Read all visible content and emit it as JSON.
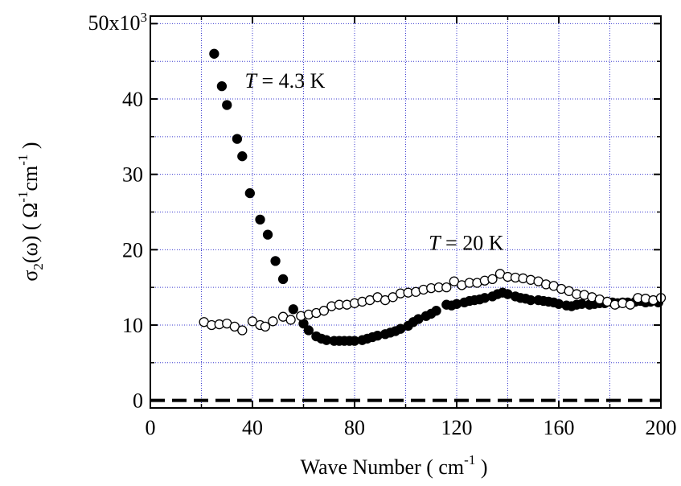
{
  "chart_data": {
    "type": "scatter",
    "xlabel": "Wave Number ( cm",
    "xlabel_sup": "-1",
    "xlabel_end": " )",
    "ylabel": "σ",
    "ylabel_sub": "2",
    "ylabel_mid": "(ω) ( Ω",
    "ylabel_sup1": "-1",
    "ylabel_mid2": "cm",
    "ylabel_sup2": "-1",
    "ylabel_end": " )",
    "y_multiplier_base": "x10",
    "y_multiplier_exp": "3",
    "xlim": [
      0,
      200
    ],
    "ylim": [
      -1,
      51
    ],
    "x_ticks": [
      {
        "value": 0,
        "label": "0"
      },
      {
        "value": 40,
        "label": "40"
      },
      {
        "value": 80,
        "label": "80"
      },
      {
        "value": 120,
        "label": "120"
      },
      {
        "value": 160,
        "label": "160"
      },
      {
        "value": 200,
        "label": "200"
      }
    ],
    "y_ticks": [
      {
        "value": 0,
        "label": "0"
      },
      {
        "value": 10,
        "label": "10"
      },
      {
        "value": 20,
        "label": "20"
      },
      {
        "value": 30,
        "label": "30"
      },
      {
        "value": 40,
        "label": "40"
      },
      {
        "value": 50,
        "label": "50"
      }
    ],
    "grid": true,
    "reference_line": {
      "y": 0,
      "style": "dashed"
    },
    "annotations": [
      {
        "italic": "T",
        "text": " = 4.3 K",
        "x": 37,
        "y": 41.5
      },
      {
        "italic": "T",
        "text": " = 20 K",
        "x": 109,
        "y": 20.0
      }
    ],
    "series": [
      {
        "marker": "filled",
        "points": [
          [
            25,
            46.0
          ],
          [
            28,
            41.7
          ],
          [
            30,
            39.2
          ],
          [
            34,
            34.7
          ],
          [
            36,
            32.4
          ],
          [
            39,
            27.5
          ],
          [
            43,
            24.0
          ],
          [
            46,
            22.0
          ],
          [
            49,
            18.5
          ],
          [
            52,
            16.1
          ],
          [
            56,
            12.1
          ],
          [
            60,
            10.2
          ],
          [
            62,
            9.3
          ],
          [
            65,
            8.5
          ],
          [
            67,
            8.2
          ],
          [
            69,
            8.0
          ],
          [
            72,
            7.9
          ],
          [
            74,
            7.9
          ],
          [
            76,
            7.9
          ],
          [
            78,
            7.9
          ],
          [
            80,
            7.9
          ],
          [
            83,
            8.0
          ],
          [
            85,
            8.2
          ],
          [
            87,
            8.4
          ],
          [
            89,
            8.6
          ],
          [
            92,
            8.8
          ],
          [
            94,
            9.0
          ],
          [
            96,
            9.2
          ],
          [
            98,
            9.5
          ],
          [
            101,
            9.9
          ],
          [
            103,
            10.4
          ],
          [
            105,
            10.8
          ],
          [
            108,
            11.2
          ],
          [
            110,
            11.5
          ],
          [
            112,
            11.9
          ],
          [
            116,
            12.7
          ],
          [
            118,
            12.6
          ],
          [
            120,
            12.8
          ],
          [
            123,
            13.0
          ],
          [
            125,
            13.2
          ],
          [
            127,
            13.3
          ],
          [
            129,
            13.4
          ],
          [
            131,
            13.6
          ],
          [
            134,
            13.8
          ],
          [
            136,
            14.1
          ],
          [
            138,
            14.3
          ],
          [
            140,
            14.1
          ],
          [
            143,
            13.8
          ],
          [
            145,
            13.6
          ],
          [
            147,
            13.5
          ],
          [
            149,
            13.3
          ],
          [
            152,
            13.3
          ],
          [
            154,
            13.2
          ],
          [
            156,
            13.1
          ],
          [
            158,
            13.0
          ],
          [
            160,
            12.8
          ],
          [
            163,
            12.6
          ],
          [
            165,
            12.5
          ],
          [
            167,
            12.7
          ],
          [
            169,
            12.8
          ],
          [
            172,
            12.7
          ],
          [
            174,
            12.8
          ],
          [
            176,
            12.9
          ],
          [
            178,
            12.9
          ],
          [
            181,
            13.0
          ],
          [
            183,
            12.9
          ],
          [
            185,
            13.0
          ],
          [
            187,
            13.0
          ],
          [
            190,
            13.1
          ],
          [
            192,
            13.2
          ],
          [
            194,
            13.0
          ],
          [
            196,
            13.1
          ],
          [
            199,
            13.0
          ]
        ]
      },
      {
        "marker": "open",
        "points": [
          [
            21,
            10.4
          ],
          [
            24,
            10.0
          ],
          [
            27,
            10.1
          ],
          [
            30,
            10.2
          ],
          [
            33,
            9.8
          ],
          [
            36,
            9.3
          ],
          [
            40,
            10.5
          ],
          [
            43,
            10.0
          ],
          [
            45,
            9.8
          ],
          [
            48,
            10.5
          ],
          [
            52,
            11.1
          ],
          [
            55,
            10.7
          ],
          [
            59,
            11.2
          ],
          [
            62,
            11.4
          ],
          [
            65,
            11.6
          ],
          [
            68,
            11.9
          ],
          [
            71,
            12.5
          ],
          [
            74,
            12.7
          ],
          [
            77,
            12.7
          ],
          [
            80,
            12.9
          ],
          [
            83,
            13.1
          ],
          [
            86,
            13.3
          ],
          [
            89,
            13.7
          ],
          [
            92,
            13.3
          ],
          [
            95,
            13.7
          ],
          [
            98,
            14.2
          ],
          [
            101,
            14.3
          ],
          [
            104,
            14.4
          ],
          [
            107,
            14.7
          ],
          [
            110,
            14.9
          ],
          [
            113,
            15.0
          ],
          [
            116,
            15.0
          ],
          [
            119,
            15.8
          ],
          [
            122,
            15.3
          ],
          [
            125,
            15.6
          ],
          [
            128,
            15.6
          ],
          [
            131,
            15.9
          ],
          [
            134,
            16.1
          ],
          [
            137,
            16.8
          ],
          [
            140,
            16.4
          ],
          [
            143,
            16.3
          ],
          [
            146,
            16.2
          ],
          [
            149,
            16.0
          ],
          [
            152,
            15.8
          ],
          [
            155,
            15.4
          ],
          [
            158,
            15.2
          ],
          [
            161,
            14.8
          ],
          [
            164,
            14.5
          ],
          [
            167,
            14.1
          ],
          [
            170,
            14.0
          ],
          [
            173,
            13.7
          ],
          [
            176,
            13.4
          ],
          [
            179,
            13.1
          ],
          [
            182,
            12.7
          ],
          [
            185,
            12.9
          ],
          [
            188,
            12.7
          ],
          [
            191,
            13.6
          ],
          [
            194,
            13.5
          ],
          [
            197,
            13.3
          ],
          [
            200,
            13.6
          ]
        ]
      }
    ]
  }
}
